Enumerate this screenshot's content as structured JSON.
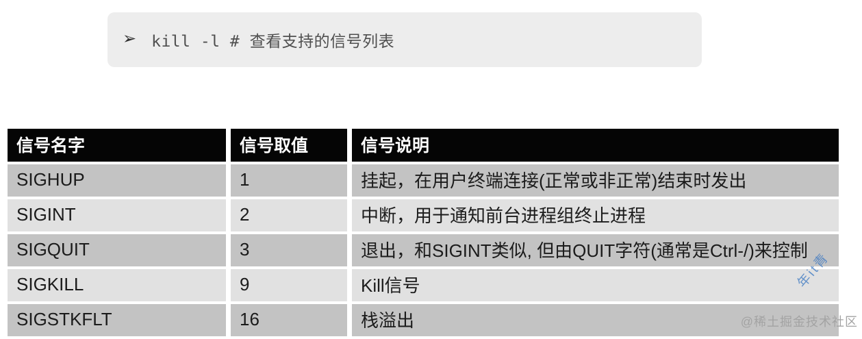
{
  "code_block": {
    "prompt_glyph": "➢",
    "command": "kill -l # 查看支持的信号列表",
    "bg": "#ededed",
    "text_color": "#4f4f4f"
  },
  "signal_table": {
    "headers": [
      "信号名字",
      "信号取值",
      "信号说明"
    ],
    "rows": [
      {
        "name": "SIGHUP",
        "value": "1",
        "description": "挂起，在用户终端连接(正常或非正常)结束时发出"
      },
      {
        "name": "SIGINT",
        "value": "2",
        "description": "中断，用于通知前台进程组终止进程"
      },
      {
        "name": "SIGQUIT",
        "value": "3",
        "description": "退出，和SIGINT类似, 但由QUIT字符(通常是Ctrl-/)来控制"
      },
      {
        "name": "SIGKILL",
        "value": "9",
        "description": "Kill信号"
      },
      {
        "name": "SIGSTKFLT",
        "value": "16",
        "description": "栈溢出"
      }
    ],
    "colors": {
      "header_bg": "#050505",
      "header_text": "#ffffff",
      "row_dark": "#c3c3c3",
      "row_light": "#e1e1e1"
    }
  },
  "watermark": {
    "site_handle": "@稀土掘金技术社区",
    "diagonal_text": "年it青",
    "gray_color": "#a3a3a3",
    "blue_color": "#3b78c2"
  }
}
